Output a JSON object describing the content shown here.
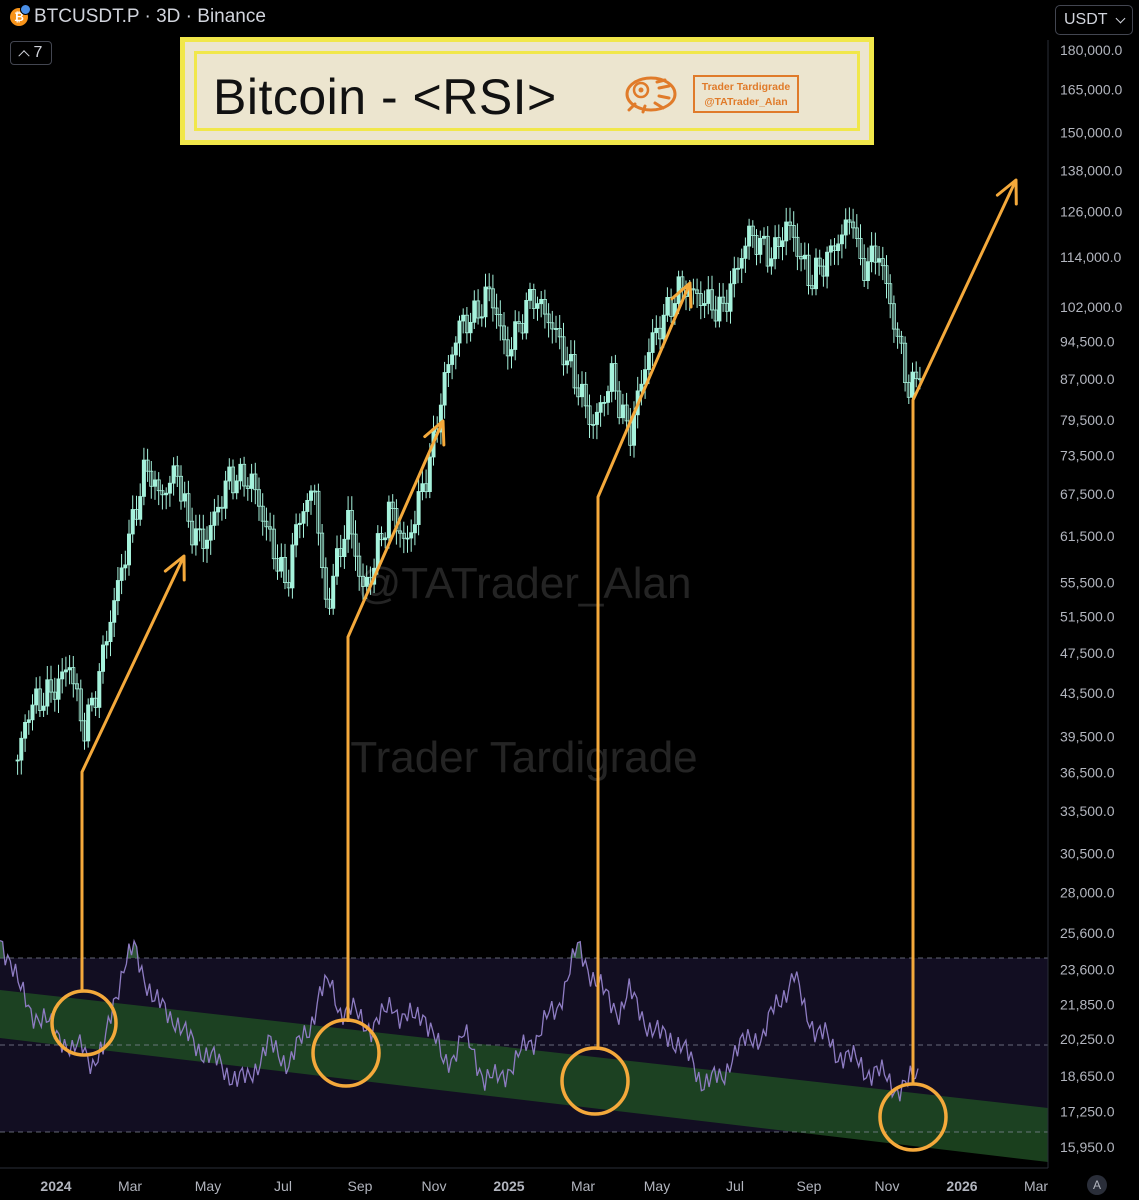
{
  "header": {
    "symbol_line": "BTCUSDT.P · 3D · Binance",
    "indicator_count": "7",
    "currency": "USDT",
    "btc_glyph": "₿",
    "auto_label": "A"
  },
  "title_box": {
    "title": "Bitcoin - <RSI>",
    "brand_line1": "Trader Tardigrade",
    "brand_line2": "@TATrader_Alan",
    "logo_icon": "tardigrade-logo-icon"
  },
  "watermarks": [
    "@TATrader_Alan",
    "Trader Tardigrade"
  ],
  "colors": {
    "candle": "#a6f2dc",
    "rsi_line": "#8e7cc3",
    "annotation": "#f4a93b",
    "channel": "#1f4a22",
    "title_border": "#f1e74a",
    "brand": "#e07b2a"
  },
  "chart_data": [
    {
      "type": "candlestick",
      "title": "",
      "scale": "log",
      "y_axis_ticks": [
        "180,000.0",
        "165,000.0",
        "150,000.0",
        "138,000.0",
        "126,000.0",
        "114,000.0",
        "102,000.0",
        "94,500.0",
        "87,000.0",
        "79,500.0",
        "73,500.0",
        "67,500.0",
        "61,500.0",
        "55,500.0",
        "51,500.0",
        "47,500.0",
        "43,500.0",
        "39,500.0",
        "36,500.0",
        "33,500.0",
        "30,500.0",
        "28,000.0",
        "25,600.0",
        "23,600.0",
        "21,850.0",
        "20,250.0",
        "18,650.0",
        "17,250.0",
        "15,950.0"
      ],
      "x_axis_ticks": [
        "2024",
        "Mar",
        "May",
        "Jul",
        "Sep",
        "Nov",
        "2025",
        "Mar",
        "May",
        "Jul",
        "Sep",
        "Nov",
        "2026",
        "Mar"
      ],
      "x_axis_bold": [
        "2024",
        "2025",
        "2026"
      ],
      "price_path": [
        {
          "date": "2023-12-01",
          "close": 37500
        },
        {
          "date": "2023-12-10",
          "close": 42000
        },
        {
          "date": "2024-01-01",
          "close": 44000
        },
        {
          "date": "2024-01-12",
          "close": 46500
        },
        {
          "date": "2024-01-23",
          "close": 40000
        },
        {
          "date": "2024-02-01",
          "close": 43000
        },
        {
          "date": "2024-02-15",
          "close": 52000
        },
        {
          "date": "2024-03-01",
          "close": 62000
        },
        {
          "date": "2024-03-14",
          "close": 72000
        },
        {
          "date": "2024-03-25",
          "close": 67000
        },
        {
          "date": "2024-04-08",
          "close": 71000
        },
        {
          "date": "2024-04-17",
          "close": 63000
        },
        {
          "date": "2024-04-30",
          "close": 60500
        },
        {
          "date": "2024-05-20",
          "close": 70000
        },
        {
          "date": "2024-06-07",
          "close": 69500
        },
        {
          "date": "2024-06-24",
          "close": 60000
        },
        {
          "date": "2024-07-05",
          "close": 55000
        },
        {
          "date": "2024-07-15",
          "close": 64000
        },
        {
          "date": "2024-07-29",
          "close": 68500
        },
        {
          "date": "2024-08-05",
          "close": 52000
        },
        {
          "date": "2024-08-24",
          "close": 64000
        },
        {
          "date": "2024-09-06",
          "close": 54000
        },
        {
          "date": "2024-09-27",
          "close": 65500
        },
        {
          "date": "2024-10-10",
          "close": 60000
        },
        {
          "date": "2024-10-29",
          "close": 72500
        },
        {
          "date": "2024-11-11",
          "close": 88000
        },
        {
          "date": "2024-11-22",
          "close": 98000
        },
        {
          "date": "2024-12-05",
          "close": 100000
        },
        {
          "date": "2024-12-17",
          "close": 106000
        },
        {
          "date": "2024-12-30",
          "close": 92000
        },
        {
          "date": "2025-01-20",
          "close": 105000
        },
        {
          "date": "2025-02-05",
          "close": 98000
        },
        {
          "date": "2025-02-25",
          "close": 86000
        },
        {
          "date": "2025-03-10",
          "close": 78500
        },
        {
          "date": "2025-03-25",
          "close": 87500
        },
        {
          "date": "2025-04-08",
          "close": 76500
        },
        {
          "date": "2025-04-25",
          "close": 94000
        },
        {
          "date": "2025-05-20",
          "close": 107000
        },
        {
          "date": "2025-06-05",
          "close": 104000
        },
        {
          "date": "2025-06-22",
          "close": 101000
        },
        {
          "date": "2025-07-14",
          "close": 120000
        },
        {
          "date": "2025-08-02",
          "close": 114000
        },
        {
          "date": "2025-08-14",
          "close": 123000
        },
        {
          "date": "2025-09-01",
          "close": 108000
        },
        {
          "date": "2025-09-20",
          "close": 116000
        },
        {
          "date": "2025-10-06",
          "close": 125000
        },
        {
          "date": "2025-10-11",
          "close": 111000
        },
        {
          "date": "2025-10-27",
          "close": 115000
        },
        {
          "date": "2025-11-21",
          "close": 84000
        },
        {
          "date": "2025-12-01",
          "close": 91000
        }
      ],
      "annotations": [
        "arrow from late-Jan 2024 RSI low up to Apr 2024",
        "arrow from Sep 2024 RSI low up to Nov 2024",
        "arrow from Apr 2025 RSI low up to Jun 2025",
        "arrow from Dec 2025 RSI low up to beyond chart edge"
      ]
    },
    {
      "type": "line",
      "title": "",
      "series": [
        {
          "values": [
            74,
            70,
            62,
            58,
            56,
            54,
            52,
            48,
            50,
            46,
            48,
            60,
            68,
            72,
            66,
            60,
            58,
            56,
            52,
            50,
            48,
            46,
            44,
            42,
            42,
            46,
            50,
            48,
            46,
            50,
            54,
            62,
            64,
            58,
            58,
            56,
            54,
            56,
            60,
            56,
            56,
            58,
            52,
            46,
            48,
            52,
            48,
            42,
            42,
            44,
            46,
            50,
            52,
            56,
            58,
            66,
            72,
            68,
            64,
            60,
            58,
            62,
            58,
            54,
            52,
            52,
            50,
            46,
            42,
            42,
            42,
            48,
            50,
            52,
            52,
            58,
            62,
            66,
            58,
            54,
            52,
            48,
            48,
            46,
            44,
            44,
            42,
            40,
            41,
            43
          ]
        }
      ],
      "upper_band": 70,
      "lower_band": 30,
      "mid_line": 50,
      "channel": "descending green support channel",
      "highlighted_lows": [
        "2024-01-23",
        "2024-09-06",
        "2025-04-08",
        "2025-11-21"
      ]
    }
  ]
}
